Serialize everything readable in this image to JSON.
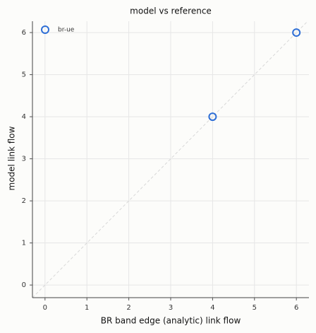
{
  "chart_data": {
    "type": "scatter",
    "title": "model vs reference",
    "x_label": "BR band edge (analytic) link flow",
    "y_label": "model link flow",
    "series": [
      {
        "name": "br-ue",
        "color": "#2f6fd6",
        "x": [
          4,
          6
        ],
        "values": [
          4,
          6
        ]
      }
    ],
    "xlim": [
      -0.3,
      6.3
    ],
    "ylim": [
      -0.3,
      6.27
    ],
    "xticks": [
      0,
      1,
      2,
      3,
      4,
      5,
      6
    ],
    "yticks": [
      0,
      1,
      2,
      3,
      4,
      5,
      6
    ],
    "grid": true,
    "legend": "upper-left"
  }
}
